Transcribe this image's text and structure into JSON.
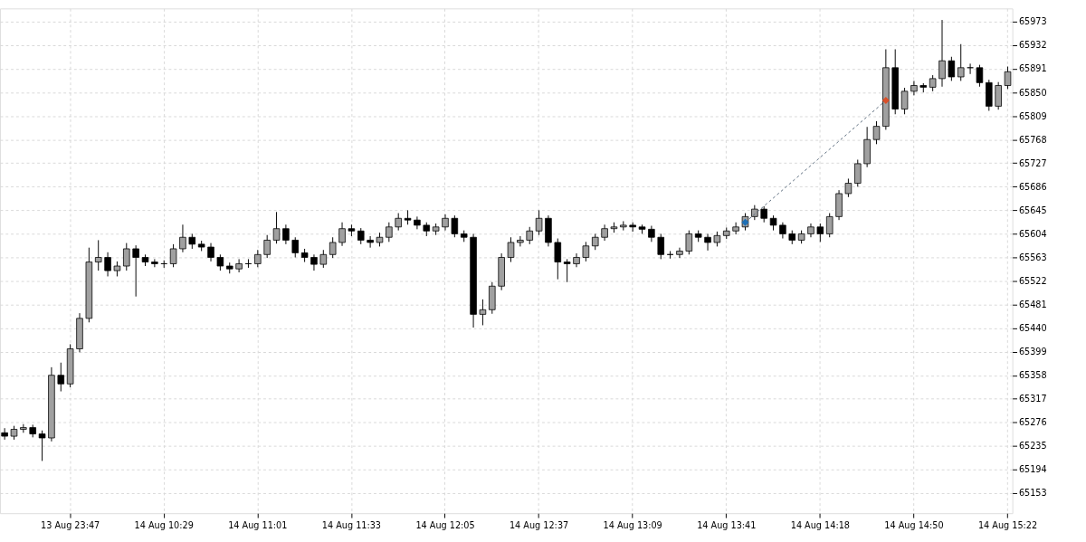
{
  "chart_data": {
    "type": "candlestick",
    "categories": [
      null,
      null,
      null,
      null,
      null,
      null,
      null,
      "13 Aug 23:47",
      null,
      null,
      null,
      null,
      null,
      null,
      null,
      null,
      null,
      "14 Aug 10:29",
      null,
      null,
      null,
      null,
      null,
      null,
      null,
      null,
      null,
      "14 Aug 11:01",
      null,
      null,
      null,
      null,
      null,
      null,
      null,
      null,
      null,
      "14 Aug 11:33",
      null,
      null,
      null,
      null,
      null,
      null,
      null,
      null,
      null,
      "14 Aug 12:05",
      null,
      null,
      null,
      null,
      null,
      null,
      null,
      null,
      null,
      "14 Aug 12:37",
      null,
      null,
      null,
      null,
      null,
      null,
      null,
      null,
      null,
      "14 Aug 13:09",
      null,
      null,
      null,
      null,
      null,
      null,
      null,
      null,
      null,
      "14 Aug 13:41",
      null,
      null,
      null,
      null,
      null,
      null,
      null,
      null,
      null,
      "14 Aug 14:18",
      null,
      null,
      null,
      null,
      null,
      null,
      null,
      null,
      null,
      "14 Aug 14:50",
      null,
      null,
      null,
      null,
      null,
      null,
      null,
      null,
      null,
      "14 Aug 15:22"
    ],
    "ohlc": [
      [
        65258,
        65266,
        65246,
        65252
      ],
      [
        65252,
        65270,
        65246,
        65264
      ],
      [
        65264,
        65273,
        65258,
        65267
      ],
      [
        65267,
        65272,
        65250,
        65256
      ],
      [
        65256,
        65262,
        65209,
        65249
      ],
      [
        65249,
        65372,
        65243,
        65358
      ],
      [
        65358,
        65380,
        65330,
        65343
      ],
      [
        65343,
        65412,
        65337,
        65404
      ],
      [
        65404,
        65466,
        65398,
        65457
      ],
      [
        65457,
        65580,
        65450,
        65555
      ],
      [
        65555,
        65593,
        65540,
        65563
      ],
      [
        65563,
        65572,
        65530,
        65540
      ],
      [
        65540,
        65556,
        65530,
        65548
      ],
      [
        65548,
        65588,
        65540,
        65578
      ],
      [
        65578,
        65584,
        65495,
        65563
      ],
      [
        65563,
        65568,
        65548,
        65555
      ],
      [
        65555,
        65560,
        65546,
        65552
      ],
      [
        65552,
        65558,
        65545,
        65552
      ],
      [
        65552,
        65586,
        65546,
        65578
      ],
      [
        65578,
        65620,
        65572,
        65598
      ],
      [
        65598,
        65604,
        65578,
        65586
      ],
      [
        65586,
        65592,
        65574,
        65581
      ],
      [
        65581,
        65588,
        65556,
        65563
      ],
      [
        65563,
        65568,
        65540,
        65548
      ],
      [
        65548,
        65554,
        65535,
        65543
      ],
      [
        65543,
        65560,
        65537,
        65552
      ],
      [
        65552,
        65560,
        65545,
        65552
      ],
      [
        65552,
        65576,
        65546,
        65568
      ],
      [
        65568,
        65602,
        65562,
        65593
      ],
      [
        65593,
        65642,
        65587,
        65613
      ],
      [
        65613,
        65620,
        65586,
        65593
      ],
      [
        65593,
        65598,
        65563,
        65571
      ],
      [
        65571,
        65578,
        65555,
        65563
      ],
      [
        65563,
        65568,
        65540,
        65551
      ],
      [
        65551,
        65576,
        65545,
        65568
      ],
      [
        65568,
        65598,
        65562,
        65589
      ],
      [
        65589,
        65624,
        65583,
        65613
      ],
      [
        65613,
        65620,
        65600,
        65609
      ],
      [
        65609,
        65614,
        65586,
        65593
      ],
      [
        65593,
        65600,
        65580,
        65589
      ],
      [
        65589,
        65606,
        65582,
        65598
      ],
      [
        65598,
        65624,
        65590,
        65616
      ],
      [
        65616,
        65640,
        65610,
        65631
      ],
      [
        65631,
        65645,
        65620,
        65628
      ],
      [
        65628,
        65634,
        65612,
        65619
      ],
      [
        65619,
        65624,
        65600,
        65609
      ],
      [
        65609,
        65622,
        65602,
        65616
      ],
      [
        65616,
        65638,
        65610,
        65631
      ],
      [
        65631,
        65636,
        65598,
        65604
      ],
      [
        65604,
        65610,
        65590,
        65598
      ],
      [
        65598,
        65604,
        65441,
        65464
      ],
      [
        65464,
        65490,
        65445,
        65472
      ],
      [
        65472,
        65520,
        65465,
        65513
      ],
      [
        65513,
        65570,
        65506,
        65563
      ],
      [
        65563,
        65598,
        65555,
        65589
      ],
      [
        65589,
        65600,
        65582,
        65593
      ],
      [
        65593,
        65616,
        65586,
        65609
      ],
      [
        65609,
        65645,
        65602,
        65631
      ],
      [
        65631,
        65636,
        65582,
        65589
      ],
      [
        65589,
        65596,
        65525,
        65555
      ],
      [
        65555,
        65560,
        65520,
        65552
      ],
      [
        65552,
        65570,
        65546,
        65563
      ],
      [
        65563,
        65590,
        65556,
        65583
      ],
      [
        65583,
        65604,
        65576,
        65598
      ],
      [
        65598,
        65620,
        65592,
        65613
      ],
      [
        65613,
        65624,
        65606,
        65616
      ],
      [
        65616,
        65626,
        65610,
        65619
      ],
      [
        65619,
        65624,
        65608,
        65616
      ],
      [
        65616,
        65620,
        65604,
        65612
      ],
      [
        65612,
        65618,
        65590,
        65598
      ],
      [
        65598,
        65604,
        65560,
        65568
      ],
      [
        65568,
        65574,
        65561,
        65568
      ],
      [
        65568,
        65580,
        65562,
        65574
      ],
      [
        65574,
        65610,
        65568,
        65604
      ],
      [
        65604,
        65610,
        65590,
        65598
      ],
      [
        65598,
        65604,
        65575,
        65589
      ],
      [
        65589,
        65608,
        65582,
        65601
      ],
      [
        65601,
        65615,
        65595,
        65609
      ],
      [
        65609,
        65624,
        65603,
        65616
      ],
      [
        65616,
        65640,
        65610,
        65634
      ],
      [
        65634,
        65654,
        65628,
        65647
      ],
      [
        65647,
        65652,
        65624,
        65631
      ],
      [
        65631,
        65636,
        65610,
        65619
      ],
      [
        65619,
        65624,
        65596,
        65604
      ],
      [
        65604,
        65610,
        65586,
        65593
      ],
      [
        65593,
        65610,
        65587,
        65604
      ],
      [
        65604,
        65622,
        65598,
        65616
      ],
      [
        65616,
        65622,
        65590,
        65604
      ],
      [
        65604,
        65640,
        65598,
        65634
      ],
      [
        65634,
        65680,
        65628,
        65674
      ],
      [
        65674,
        65700,
        65668,
        65692
      ],
      [
        65692,
        65733,
        65686,
        65726
      ],
      [
        65726,
        65790,
        65720,
        65768
      ],
      [
        65768,
        65800,
        65760,
        65791
      ],
      [
        65791,
        65925,
        65785,
        65893
      ],
      [
        65893,
        65925,
        65812,
        65821
      ],
      [
        65821,
        65858,
        65812,
        65852
      ],
      [
        65852,
        65870,
        65845,
        65862
      ],
      [
        65862,
        65866,
        65850,
        65859
      ],
      [
        65859,
        65880,
        65852,
        65874
      ],
      [
        65874,
        65976,
        65860,
        65905
      ],
      [
        65905,
        65912,
        65870,
        65877
      ],
      [
        65877,
        65934,
        65870,
        65893
      ],
      [
        65893,
        65900,
        65882,
        65893
      ],
      [
        65893,
        65898,
        65860,
        65867
      ],
      [
        65867,
        65872,
        65818,
        65826
      ],
      [
        65826,
        65868,
        65820,
        65862
      ],
      [
        65862,
        65895,
        65856,
        65886
      ]
    ],
    "colors": [
      "#000000",
      "#a0a0a0",
      "#a0a0a0",
      "#000000",
      "#000000",
      "#a0a0a0",
      "#000000",
      "#a0a0a0",
      "#a0a0a0",
      "#a0a0a0",
      "#a0a0a0",
      "#000000",
      "#a0a0a0",
      "#a0a0a0",
      "#000000",
      "#000000",
      "#000000",
      "#000000",
      "#a0a0a0",
      "#a0a0a0",
      "#000000",
      "#000000",
      "#000000",
      "#000000",
      "#000000",
      "#a0a0a0",
      "#000000",
      "#a0a0a0",
      "#a0a0a0",
      "#a0a0a0",
      "#000000",
      "#000000",
      "#000000",
      "#000000",
      "#a0a0a0",
      "#a0a0a0",
      "#a0a0a0",
      "#000000",
      "#000000",
      "#000000",
      "#a0a0a0",
      "#a0a0a0",
      "#a0a0a0",
      "#000000",
      "#000000",
      "#000000",
      "#a0a0a0",
      "#a0a0a0",
      "#000000",
      "#000000",
      "#000000",
      "#a0a0a0",
      "#a0a0a0",
      "#a0a0a0",
      "#a0a0a0",
      "#a0a0a0",
      "#a0a0a0",
      "#a0a0a0",
      "#000000",
      "#000000",
      "#000000",
      "#a0a0a0",
      "#a0a0a0",
      "#a0a0a0",
      "#a0a0a0",
      "#a0a0a0",
      "#a0a0a0",
      "#000000",
      "#000000",
      "#000000",
      "#000000",
      "#000000",
      "#a0a0a0",
      "#a0a0a0",
      "#000000",
      "#000000",
      "#a0a0a0",
      "#a0a0a0",
      "#a0a0a0",
      "#a0a0a0",
      "#a0a0a0",
      "#000000",
      "#000000",
      "#000000",
      "#000000",
      "#a0a0a0",
      "#a0a0a0",
      "#000000",
      "#a0a0a0",
      "#a0a0a0",
      "#a0a0a0",
      "#a0a0a0",
      "#a0a0a0",
      "#a0a0a0",
      "#a0a0a0",
      "#000000",
      "#a0a0a0",
      "#a0a0a0",
      "#000000",
      "#a0a0a0",
      "#a0a0a0",
      "#000000",
      "#a0a0a0",
      "#000000",
      "#000000",
      "#000000",
      "#a0a0a0",
      "#a0a0a0"
    ],
    "series": [
      {
        "type": "line",
        "color": "#5a6b7c",
        "line_style": "dashed",
        "marker": "diamond",
        "values": [
          null,
          null,
          null,
          null,
          null,
          null,
          null,
          null,
          null,
          null,
          null,
          null,
          null,
          null,
          null,
          null,
          null,
          null,
          null,
          null,
          null,
          null,
          null,
          null,
          null,
          null,
          null,
          null,
          null,
          null,
          null,
          null,
          null,
          null,
          null,
          null,
          null,
          null,
          null,
          null,
          null,
          null,
          null,
          null,
          null,
          null,
          null,
          null,
          null,
          null,
          null,
          null,
          null,
          null,
          null,
          null,
          null,
          null,
          null,
          null,
          null,
          null,
          null,
          null,
          null,
          null,
          null,
          null,
          null,
          null,
          null,
          null,
          null,
          null,
          null,
          null,
          null,
          null,
          null,
          65624,
          null,
          null,
          null,
          null,
          null,
          null,
          null,
          null,
          null,
          null,
          null,
          null,
          null,
          null,
          65836,
          null,
          null,
          null,
          null,
          null,
          null,
          null,
          null,
          null,
          null,
          null,
          null,
          null
        ],
        "colors": [
          null,
          null,
          null,
          null,
          null,
          null,
          null,
          null,
          null,
          null,
          null,
          null,
          null,
          null,
          null,
          null,
          null,
          null,
          null,
          null,
          null,
          null,
          null,
          null,
          null,
          null,
          null,
          null,
          null,
          null,
          null,
          null,
          null,
          null,
          null,
          null,
          null,
          null,
          null,
          null,
          null,
          null,
          null,
          null,
          null,
          null,
          null,
          null,
          null,
          null,
          null,
          null,
          null,
          null,
          null,
          null,
          null,
          null,
          null,
          null,
          null,
          null,
          null,
          null,
          null,
          null,
          null,
          null,
          null,
          null,
          null,
          null,
          null,
          null,
          null,
          null,
          null,
          null,
          null,
          "#1f6fb4",
          null,
          null,
          null,
          null,
          null,
          null,
          null,
          null,
          null,
          null,
          null,
          null,
          null,
          null,
          "#d9502a",
          null,
          null,
          null,
          null,
          null,
          null,
          null,
          null,
          null,
          null,
          null,
          null,
          null
        ]
      }
    ],
    "ylim": [
      65118,
      65996
    ],
    "yticks": [
      65153,
      65194,
      65235,
      65276,
      65317,
      65358,
      65399,
      65440,
      65481,
      65522,
      65563,
      65604,
      65645,
      65686,
      65727,
      65768,
      65809,
      65850,
      65891,
      65932,
      65973
    ],
    "grid": true
  }
}
